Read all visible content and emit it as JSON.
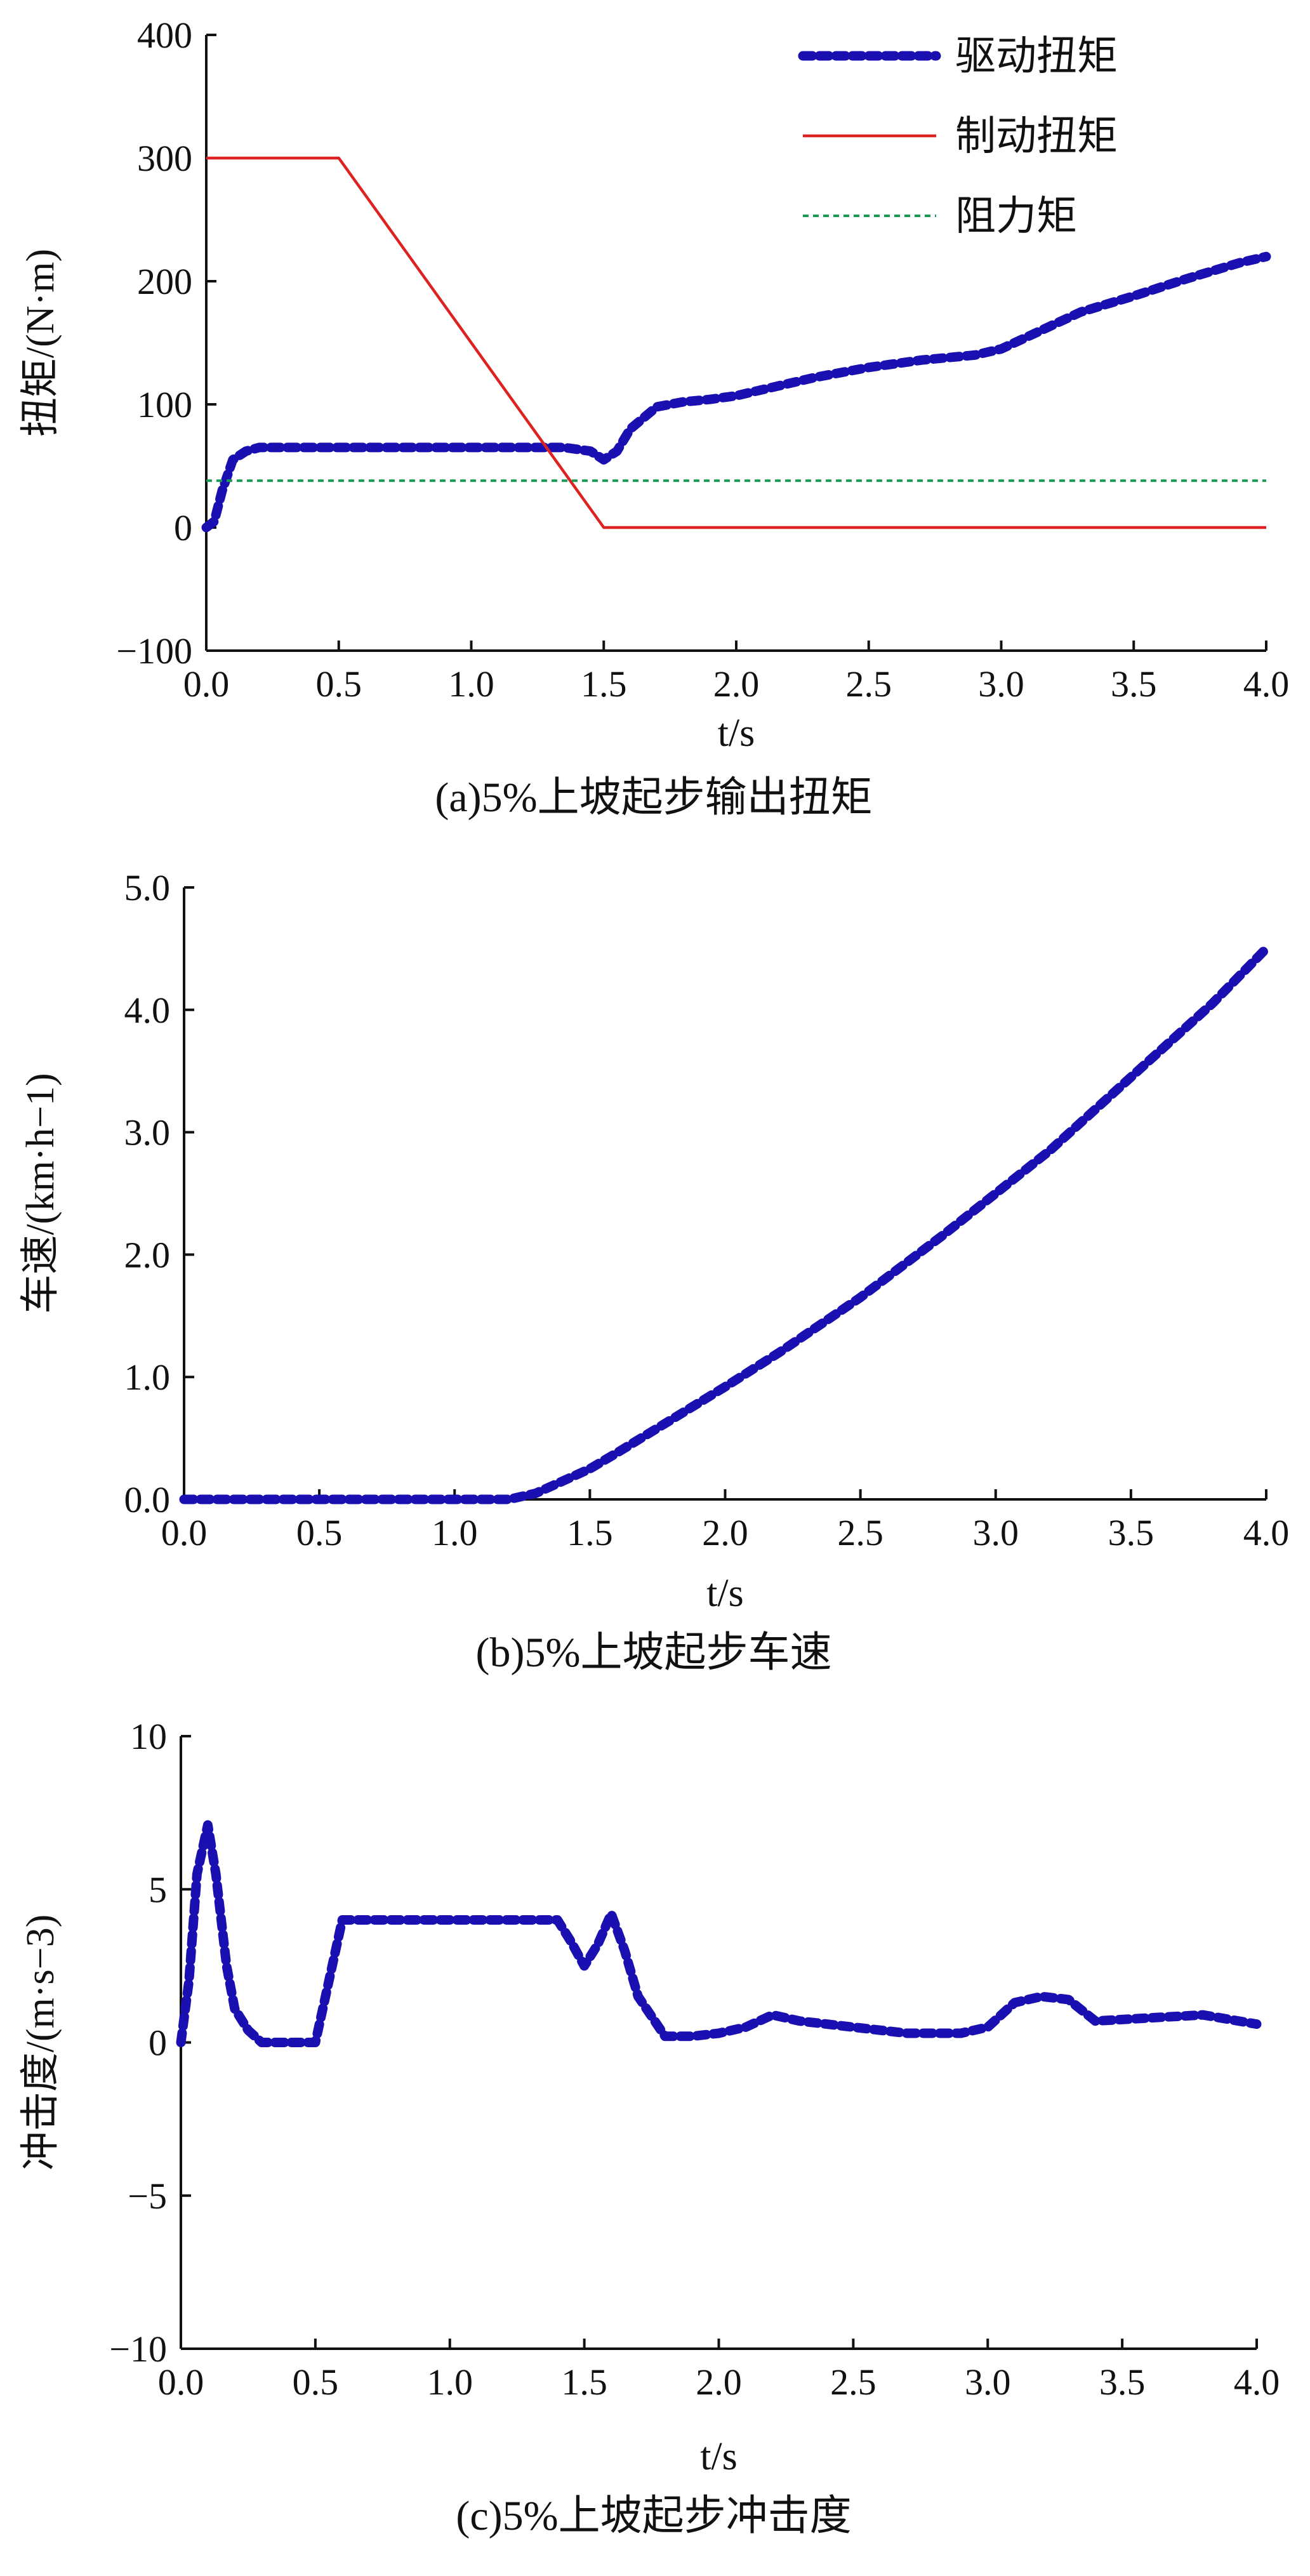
{
  "chart_data": [
    {
      "type": "line",
      "caption": "(a)5%上坡起步输出扭矩",
      "xlabel": "t/s",
      "ylabel": "扭矩/(N·m)",
      "xlim": [
        0,
        4.0
      ],
      "ylim": [
        -100,
        400
      ],
      "xticks": [
        0,
        0.5,
        1.0,
        1.5,
        2.0,
        2.5,
        3.0,
        3.5,
        4.0
      ],
      "xtick_labels": [
        "0.0",
        "0.5",
        "1.0",
        "1.5",
        "2.0",
        "2.5",
        "3.0",
        "3.5",
        "4.0"
      ],
      "yticks": [
        -100,
        0,
        100,
        200,
        300,
        400
      ],
      "ytick_labels": [
        "−100",
        "0",
        "100",
        "200",
        "300",
        "400"
      ],
      "legend": "top-right",
      "grid": false,
      "series": [
        {
          "name": "驱动扭矩",
          "style": "dotted-thick",
          "color": "#1a0fb0",
          "x": [
            0,
            0.03,
            0.06,
            0.1,
            0.15,
            0.2,
            0.3,
            0.5,
            0.8,
            1.0,
            1.2,
            1.35,
            1.45,
            1.5,
            1.55,
            1.6,
            1.7,
            1.8,
            1.9,
            2.0,
            2.1,
            2.3,
            2.5,
            2.7,
            2.9,
            3.0,
            3.1,
            3.3,
            3.5,
            3.7,
            3.9,
            4.0
          ],
          "y": [
            0,
            5,
            30,
            55,
            62,
            65,
            65,
            65,
            65,
            65,
            65,
            65,
            62,
            55,
            62,
            80,
            98,
            102,
            104,
            107,
            112,
            122,
            130,
            136,
            140,
            145,
            155,
            175,
            188,
            202,
            215,
            220
          ]
        },
        {
          "name": "制动扭矩",
          "style": "solid",
          "color": "#dd2222",
          "x": [
            0,
            0.5,
            1.5,
            4.0
          ],
          "y": [
            300,
            300,
            0,
            0
          ]
        },
        {
          "name": "阻力矩",
          "style": "dashed-thin",
          "color": "#1a9a55",
          "x": [
            0,
            4.0
          ],
          "y": [
            38,
            38
          ]
        }
      ]
    },
    {
      "type": "line",
      "caption": "(b)5%上坡起步车速",
      "xlabel": "t/s",
      "ylabel": "车速/(km·h−1)",
      "xlim": [
        0,
        4.0
      ],
      "ylim": [
        0,
        5.0
      ],
      "xticks": [
        0,
        0.5,
        1.0,
        1.5,
        2.0,
        2.5,
        3.0,
        3.5,
        4.0
      ],
      "xtick_labels": [
        "0.0",
        "0.5",
        "1.0",
        "1.5",
        "2.0",
        "2.5",
        "3.0",
        "3.5",
        "4.0"
      ],
      "yticks": [
        0,
        1,
        2,
        3,
        4,
        5
      ],
      "ytick_labels": [
        "0.0",
        "1.0",
        "2.0",
        "3.0",
        "4.0",
        "5.0"
      ],
      "grid": false,
      "series": [
        {
          "style": "dotted-thick",
          "color": "#1a0fb0",
          "x": [
            0,
            0.5,
            1.0,
            1.2,
            1.3,
            1.4,
            1.5,
            1.6,
            1.8,
            2.0,
            2.2,
            2.5,
            2.8,
            3.0,
            3.2,
            3.5,
            3.8,
            4.0
          ],
          "y": [
            0,
            0,
            0,
            0,
            0.05,
            0.15,
            0.25,
            0.38,
            0.65,
            0.92,
            1.2,
            1.65,
            2.15,
            2.5,
            2.85,
            3.45,
            4.05,
            4.5
          ]
        }
      ]
    },
    {
      "type": "line",
      "caption": "(c)5%上坡起步冲击度",
      "xlabel": "t/s",
      "ylabel": "冲击度/(m·s−3)",
      "xlim": [
        0,
        4.0
      ],
      "ylim": [
        -10,
        10
      ],
      "xticks": [
        0,
        0.5,
        1.0,
        1.5,
        2.0,
        2.5,
        3.0,
        3.5,
        4.0
      ],
      "xtick_labels": [
        "0.0",
        "0.5",
        "1.0",
        "1.5",
        "2.0",
        "2.5",
        "3.0",
        "3.5",
        "4.0"
      ],
      "yticks": [
        -10,
        -5,
        0,
        5,
        10
      ],
      "ytick_labels": [
        "−10",
        "−5",
        "0",
        "5",
        "10"
      ],
      "grid": false,
      "series": [
        {
          "style": "dotted-thick",
          "color": "#1a0fb0",
          "x": [
            0,
            0.03,
            0.06,
            0.1,
            0.13,
            0.17,
            0.2,
            0.25,
            0.3,
            0.4,
            0.5,
            0.55,
            0.6,
            0.8,
            1.0,
            1.2,
            1.4,
            1.45,
            1.5,
            1.55,
            1.6,
            1.65,
            1.7,
            1.8,
            1.9,
            2.0,
            2.1,
            2.2,
            2.3,
            2.5,
            2.7,
            2.9,
            3.0,
            3.1,
            3.2,
            3.3,
            3.4,
            3.6,
            3.8,
            4.0
          ],
          "y": [
            0,
            2.0,
            5.5,
            7.1,
            5.5,
            2.5,
            1.1,
            0.4,
            0,
            0,
            0,
            2.0,
            4.0,
            4.0,
            4.0,
            4.0,
            4.0,
            3.3,
            2.5,
            3.2,
            4.2,
            3.0,
            1.5,
            0.2,
            0.2,
            0.3,
            0.5,
            0.9,
            0.7,
            0.5,
            0.3,
            0.3,
            0.5,
            1.3,
            1.5,
            1.4,
            0.7,
            0.8,
            0.9,
            0.6
          ]
        }
      ]
    }
  ]
}
